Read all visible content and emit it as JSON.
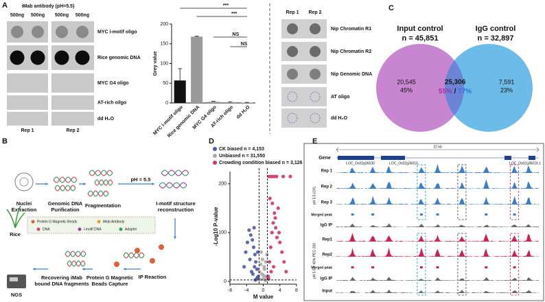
{
  "panel_labels": [
    "A",
    "B",
    "C",
    "D",
    "E"
  ],
  "dot_blot_1": {
    "header": "iMab antibody (pH=5.5)",
    "columns": [
      "500ng",
      "500ng",
      "500ng",
      "500ng"
    ],
    "rows": [
      "MYC i-motif oligo",
      "Rice genomic DNA",
      "MYC G4 oligo",
      "AT-rich oilgo",
      "dd H₂O"
    ],
    "reps": [
      "Rep 1",
      "Rep 2"
    ]
  },
  "dot_blot_2": {
    "reps": [
      "Rep 1",
      "Rep 2"
    ],
    "rows": [
      "Nip Chromatin R1",
      "Nip Chromatin R2",
      "Nip Genomic DNA",
      "AT oligo",
      "dd H₂O"
    ]
  },
  "chart_data": [
    {
      "type": "bar",
      "ylabel": "Grey value",
      "categories": [
        "MYC i-motif oligo",
        "Rice genomic DNA",
        "MYC G4 oligo",
        "AT-rich oligo",
        "dd H₂O"
      ],
      "values": [
        57,
        168,
        3,
        2,
        1
      ],
      "errors": [
        30,
        1,
        1,
        1,
        0.5
      ],
      "colors": [
        "#111111",
        "#9a9a9a",
        "#9a9a9a",
        "#9a9a9a",
        "#9a9a9a"
      ],
      "ylim": [
        0,
        200
      ],
      "yticks": [
        0,
        50,
        100,
        150,
        200
      ],
      "significance": [
        "***",
        "***",
        "NS",
        "NS"
      ]
    },
    {
      "type": "scatter",
      "xlabel": "M value",
      "ylabel": "-Log10 P-value",
      "xlim": [
        -8,
        8
      ],
      "xticks": [
        -8,
        -4,
        0,
        4,
        8
      ],
      "ylim": [
        0,
        225
      ],
      "yticks": [
        0,
        100,
        200
      ],
      "thresholds": {
        "x": [
          -1,
          1
        ],
        "y": 3
      },
      "series": [
        {
          "name": "CK biased n = 4,153",
          "color": "#4d5aa6",
          "x": [
            -1.2,
            -1.5,
            -1.8,
            -2.0,
            -2.3,
            -2.6,
            -3.0,
            -3.4,
            -3.8,
            -4.2,
            -1.4,
            -2.1,
            -2.8,
            -1.6,
            -3.2,
            -2.5,
            -1.9,
            -4.6,
            -1.3,
            -2.2
          ],
          "values": [
            10,
            25,
            40,
            55,
            70,
            85,
            95,
            105,
            80,
            60,
            8,
            30,
            20,
            5,
            45,
            15,
            3,
            30,
            60,
            110
          ]
        },
        {
          "name": "Unbiased n = 31,550",
          "color": "#a9a9a9",
          "x": [
            -0.9,
            -0.6,
            -0.3,
            0,
            0.3,
            0.6,
            0.9,
            -0.5,
            0.2,
            0.7,
            -0.8,
            0.5,
            -0.2,
            0.1,
            0.8
          ],
          "values": [
            20,
            35,
            15,
            5,
            25,
            40,
            55,
            60,
            30,
            10,
            4,
            2,
            45,
            12,
            8
          ]
        },
        {
          "name": "Crowding condition biased n = 3,126",
          "color": "#d4336b",
          "x": [
            1.2,
            1.5,
            1.8,
            2.1,
            2.4,
            2.7,
            3.0,
            3.3,
            3.6,
            4.0,
            4.5,
            5.0,
            1.4,
            2.0,
            2.6,
            3.2,
            1.6,
            2.2,
            2.9,
            3.8,
            1.3,
            1.9,
            2.5,
            5.5,
            6.5,
            4.8
          ],
          "values": [
            10,
            40,
            70,
            100,
            120,
            140,
            110,
            90,
            150,
            80,
            60,
            40,
            215,
            215,
            215,
            215,
            170,
            160,
            130,
            100,
            5,
            20,
            30,
            20,
            215,
            215
          ]
        }
      ]
    }
  ],
  "venn": {
    "left": {
      "title": "Input control",
      "n": "n = 45,851",
      "count": "20,545",
      "pct": "45%"
    },
    "right": {
      "title": "IgG control",
      "n": "n = 32,897",
      "count": "7,591",
      "pct": "23%"
    },
    "overlap": {
      "count": "25,306",
      "pct_left": "55%",
      "sep": "/",
      "pct_right": "77%"
    }
  },
  "workflow": {
    "steps": [
      [
        "Nuclei",
        "Extraction"
      ],
      [
        "Genomic DNA",
        "Purification"
      ],
      [
        "Fragmentation"
      ],
      [
        "pH = 5.5"
      ],
      [
        "I-motif structure",
        "reconstruction"
      ],
      [
        "Rice"
      ],
      [
        "IP Reaction"
      ],
      [
        "Protein G Magnetic",
        "Beads Capture"
      ],
      [
        "Recovering iMab",
        "bound DNA fragments"
      ],
      [
        "NGS"
      ]
    ],
    "legend": [
      "Protein G Magnetic Beads",
      "iMab Antibody",
      "DNA",
      "i-motif DNA",
      "Adapter"
    ]
  },
  "browser": {
    "gene_label": "Gene",
    "scale": "22 kb",
    "genes": [
      "LOC_Os02g36030",
      "LOC_Os02g36010",
      "LOC_Os02g36016.1"
    ],
    "tracks": [
      "Rep 1",
      "Rep 2",
      "Rep 3",
      "Merged peak",
      "IgG IP",
      "Rep1",
      "Rep2",
      "Merged peak",
      "IgG IP",
      "Input"
    ],
    "groups": [
      "pH 5.5 (CK)",
      "pH 5.5 + 40% PEG 200"
    ]
  }
}
